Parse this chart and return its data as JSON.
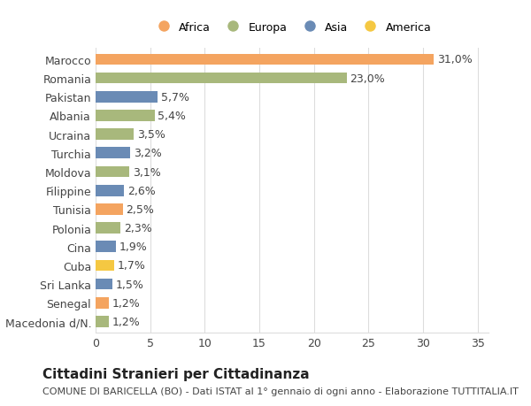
{
  "categories": [
    "Macedonia d/N.",
    "Senegal",
    "Sri Lanka",
    "Cuba",
    "Cina",
    "Polonia",
    "Tunisia",
    "Filippine",
    "Moldova",
    "Turchia",
    "Ucraina",
    "Albania",
    "Pakistan",
    "Romania",
    "Marocco"
  ],
  "values": [
    1.2,
    1.2,
    1.5,
    1.7,
    1.9,
    2.3,
    2.5,
    2.6,
    3.1,
    3.2,
    3.5,
    5.4,
    5.7,
    23.0,
    31.0
  ],
  "continents": [
    "Europa",
    "Africa",
    "Asia",
    "America",
    "Asia",
    "Europa",
    "Africa",
    "Asia",
    "Europa",
    "Asia",
    "Europa",
    "Europa",
    "Asia",
    "Europa",
    "Africa"
  ],
  "continent_colors": {
    "Africa": "#F4A460",
    "Europa": "#A8B87C",
    "Asia": "#6A8BB5",
    "America": "#F5C842"
  },
  "legend_order": [
    "Africa",
    "Europa",
    "Asia",
    "America"
  ],
  "xlabel_ticks": [
    0,
    5,
    10,
    15,
    20,
    25,
    30,
    35
  ],
  "title": "Cittadini Stranieri per Cittadinanza",
  "subtitle": "COMUNE DI BARICELLA (BO) - Dati ISTAT al 1° gennaio di ogni anno - Elaborazione TUTTITALIA.IT",
  "background_color": "#ffffff",
  "grid_color": "#dddddd",
  "bar_height": 0.6,
  "label_fontsize": 9,
  "title_fontsize": 11,
  "subtitle_fontsize": 8,
  "tick_fontsize": 9
}
